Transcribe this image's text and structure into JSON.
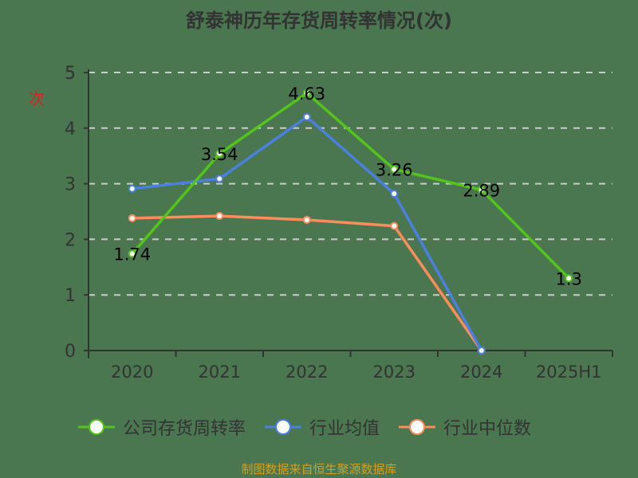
{
  "title": "舒泰神历年存货周转率情况(次)",
  "y_unit_glyph": "次",
  "source_note": "制图数据来自恒生聚源数据库",
  "colors": {
    "background": "#4a7650",
    "company": "#52c41a",
    "industry_avg": "#4a80e0",
    "industry_median": "#ff8c5a",
    "axis": "#333333",
    "grid": "#cccccc"
  },
  "legend": [
    {
      "label": "公司存货周转率",
      "color": "#52c41a"
    },
    {
      "label": "行业均值",
      "color": "#4a80e0"
    },
    {
      "label": "行业中位数",
      "color": "#ff8c5a"
    }
  ],
  "chart_data": {
    "type": "line",
    "title": "舒泰神历年存货周转率情况(次)",
    "xlabel": "",
    "ylabel": "次",
    "categories": [
      "2020",
      "2021",
      "2022",
      "2023",
      "2024",
      "2025H1"
    ],
    "ylim": [
      0,
      5
    ],
    "yticks": [
      0,
      1,
      2,
      3,
      4,
      5
    ],
    "grid": "horizontal dashed",
    "legend_position": "bottom",
    "series": [
      {
        "name": "公司存货周转率",
        "values": [
          1.74,
          3.54,
          4.63,
          3.26,
          2.89,
          1.3
        ],
        "labels": [
          "1.74",
          "3.54",
          "4.63",
          "3.26",
          "2.89",
          "1.3"
        ]
      },
      {
        "name": "行业均值",
        "values": [
          2.91,
          3.09,
          4.2,
          2.82,
          0,
          null
        ]
      },
      {
        "name": "行业中位数",
        "values": [
          2.38,
          2.42,
          2.35,
          2.24,
          0,
          null
        ]
      }
    ]
  }
}
